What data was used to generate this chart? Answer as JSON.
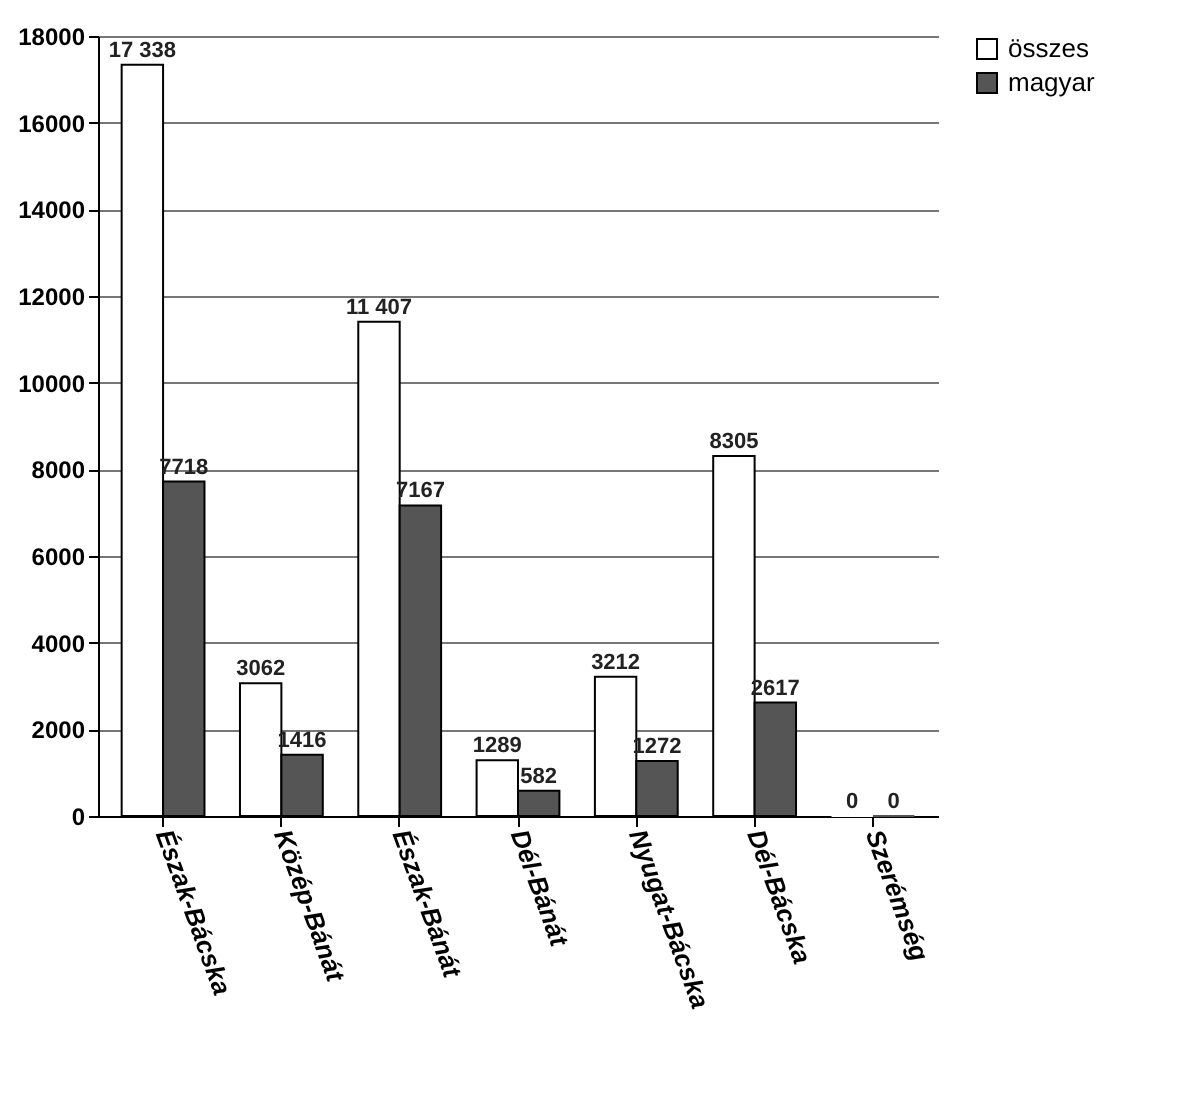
{
  "chart_data": {
    "type": "bar",
    "categories": [
      "Észak-Bácska",
      "Közép-Bánát",
      "Észak-Bánát",
      "Dél-Bánát",
      "Nyugat-Bácska",
      "Dél-Bácska",
      "Szerémség"
    ],
    "series": [
      {
        "name": "összes",
        "color": "#ffffff",
        "values": [
          17338,
          3062,
          11407,
          1289,
          3212,
          8305,
          0
        ],
        "value_labels": [
          "17 338",
          "3062",
          "11 407",
          "1289",
          "3212",
          "8305",
          "0"
        ]
      },
      {
        "name": "magyar",
        "color": "#555555",
        "values": [
          7718,
          1416,
          7167,
          582,
          1272,
          2617,
          0
        ],
        "value_labels": [
          "7718",
          "1416",
          "7167",
          "582",
          "1272",
          "2617",
          "0"
        ]
      }
    ],
    "ylim": [
      0,
      18000
    ],
    "yticks": [
      0,
      2000,
      4000,
      6000,
      8000,
      10000,
      12000,
      14000,
      16000,
      18000
    ],
    "grid": "y",
    "legend": "right"
  }
}
